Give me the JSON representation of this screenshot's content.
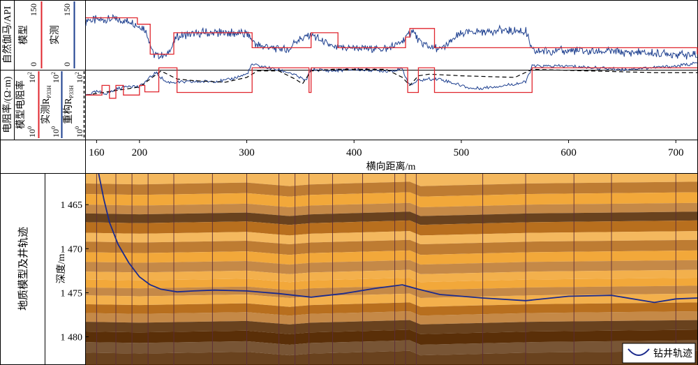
{
  "panels": {
    "gamma": {
      "group_label": "自然伽马/API",
      "model_label": "模型",
      "measured_label": "实测",
      "scale_min": "0",
      "scale_max": "150"
    },
    "resistivity": {
      "group_label": "电阻率/(Ω·m)",
      "model_label": "模型电阻率",
      "measured_label": "实测R",
      "measured_sub": "P33H",
      "recon_label": "重构R",
      "recon_sub": "P33H",
      "scale_min": "10",
      "scale_min_exp": "0",
      "scale_max": "10",
      "scale_max_exp": "2"
    },
    "geology": {
      "group_label": "地质模型及井轨迹",
      "depth_label": "深度/m",
      "legend_label": "钻井轨迹"
    }
  },
  "chart_data": {
    "type": "line",
    "x_axis": {
      "label": "横向距离/m",
      "range": [
        150,
        720
      ],
      "ticks": [
        "160",
        "200",
        "300",
        "400",
        "500",
        "600",
        "700"
      ],
      "tick_values": [
        160,
        200,
        300,
        400,
        500,
        600,
        700
      ]
    },
    "depth_axis": {
      "range": [
        1461.5,
        1483.2
      ],
      "ticks": [
        "1 465",
        "1 470",
        "1 475",
        "1 480"
      ],
      "tick_values": [
        1465,
        1470,
        1475,
        1480
      ]
    },
    "colors": {
      "model": "#e0262e",
      "measured": "#1d3f8f",
      "recon": "#000000",
      "trajectory": "#1b2a8c",
      "layer_dark": "#5a2f08",
      "layer_mid": "#b86f1e",
      "layer_light": "#f2a83a"
    },
    "gamma_model": {
      "x": [
        150,
        193,
        198,
        210,
        225,
        232,
        300,
        305,
        340,
        360,
        385,
        410,
        448,
        452,
        460,
        475,
        565,
        720
      ],
      "y": [
        115,
        115,
        100,
        30,
        30,
        80,
        80,
        45,
        45,
        80,
        45,
        45,
        70,
        90,
        90,
        45,
        45,
        30
      ]
    },
    "gamma_measured": {
      "x": [
        150,
        175,
        193,
        205,
        213,
        225,
        235,
        260,
        300,
        310,
        340,
        345,
        360,
        380,
        400,
        430,
        445,
        455,
        462,
        480,
        500,
        530,
        560,
        566,
        600,
        650,
        700,
        720
      ],
      "y": [
        108,
        112,
        105,
        90,
        30,
        25,
        70,
        80,
        78,
        50,
        40,
        60,
        75,
        45,
        45,
        42,
        60,
        85,
        55,
        40,
        78,
        85,
        85,
        38,
        38,
        35,
        30,
        28
      ]
    },
    "res_model": {
      "x": [
        150,
        160,
        165,
        172,
        178,
        185,
        200,
        205,
        213,
        218,
        232,
        235,
        300,
        305,
        315,
        340,
        358,
        360,
        445,
        450,
        460,
        462,
        475,
        476,
        565,
        566,
        720
      ],
      "y": [
        1.3,
        1.3,
        1.6,
        1.2,
        1.6,
        1.3,
        1.6,
        1.4,
        1.4,
        2.15,
        2.15,
        1.38,
        1.38,
        2.15,
        2.15,
        2.15,
        1.38,
        2.15,
        2.15,
        1.38,
        2.15,
        2.15,
        1.38,
        1.38,
        1.38,
        2.15,
        2.15
      ]
    },
    "res_measured": {
      "x": [
        150,
        160,
        170,
        180,
        190,
        200,
        205,
        215,
        225,
        240,
        260,
        280,
        300,
        305,
        320,
        340,
        355,
        360,
        380,
        400,
        430,
        445,
        452,
        460,
        470,
        480,
        495,
        510,
        520,
        540,
        560,
        566,
        600,
        650,
        700,
        720
      ],
      "y": [
        1.3,
        1.4,
        1.35,
        1.5,
        1.6,
        1.55,
        1.7,
        2.0,
        1.7,
        1.7,
        1.72,
        1.75,
        1.95,
        2.25,
        2.15,
        2.0,
        1.75,
        2.1,
        2.05,
        2.1,
        2.05,
        2.1,
        1.6,
        1.75,
        1.8,
        1.8,
        1.65,
        1.5,
        1.52,
        1.6,
        1.7,
        2.2,
        2.2,
        2.1,
        2.2,
        2.3
      ]
    },
    "res_recon": {
      "x": [
        150,
        160,
        170,
        180,
        190,
        200,
        210,
        220,
        235,
        250,
        280,
        300,
        310,
        330,
        345,
        352,
        360,
        380,
        430,
        445,
        452,
        460,
        470,
        500,
        550,
        566,
        620,
        680,
        720
      ],
      "y": [
        1.3,
        1.35,
        1.4,
        1.45,
        1.5,
        1.55,
        1.8,
        2.05,
        1.8,
        1.75,
        1.7,
        1.85,
        2.05,
        2.05,
        1.8,
        1.65,
        2.05,
        2.1,
        2.1,
        1.85,
        1.6,
        1.9,
        1.95,
        1.9,
        1.85,
        2.1,
        2.05,
        2.0,
        2.0
      ]
    },
    "trajectory": {
      "name": "钻井轨迹",
      "x": [
        162,
        167,
        172,
        180,
        190,
        200,
        210,
        220,
        235,
        250,
        270,
        300,
        330,
        360,
        390,
        420,
        445,
        460,
        480,
        520,
        560,
        600,
        640,
        680,
        700,
        720
      ],
      "depth": [
        1461.5,
        1464.5,
        1467.0,
        1469.5,
        1471.6,
        1473.2,
        1474.1,
        1474.6,
        1474.9,
        1474.8,
        1474.7,
        1474.8,
        1475.1,
        1475.5,
        1475.1,
        1474.5,
        1474.1,
        1474.6,
        1475.2,
        1475.6,
        1475.9,
        1475.4,
        1475.3,
        1476.1,
        1475.7,
        1475.6
      ]
    },
    "fault_x": [
      160,
      178,
      193,
      208,
      232,
      268,
      300,
      330,
      345,
      358,
      380,
      408,
      438,
      448,
      458,
      520,
      560,
      605,
      640,
      700
    ],
    "layer_control_x": [
      150,
      200,
      300,
      340,
      360,
      452,
      462,
      565,
      720
    ],
    "layers": [
      {
        "tone": "light",
        "top": [
          1461.5,
          1461.5,
          1461.5,
          1461.5,
          1461.5,
          1461.5,
          1461.5,
          1461.5,
          1461.5
        ]
      },
      {
        "tone": "mid",
        "top": [
          1462.6,
          1462.7,
          1462.5,
          1462.9,
          1462.7,
          1462.4,
          1462.9,
          1462.6,
          1462.4
        ]
      },
      {
        "tone": "light",
        "top": [
          1463.8,
          1463.9,
          1463.7,
          1464.1,
          1463.9,
          1463.6,
          1464.1,
          1463.8,
          1463.6
        ]
      },
      {
        "tone": "mid",
        "top": [
          1465.0,
          1465.1,
          1464.9,
          1465.3,
          1465.1,
          1464.8,
          1465.3,
          1465.0,
          1464.8
        ]
      },
      {
        "tone": "dark",
        "top": [
          1466.0,
          1466.1,
          1465.9,
          1466.3,
          1466.1,
          1465.8,
          1466.3,
          1466.0,
          1465.8
        ]
      },
      {
        "tone": "mid",
        "top": [
          1467.0,
          1467.1,
          1466.9,
          1467.3,
          1467.1,
          1466.8,
          1467.3,
          1467.0,
          1466.8
        ]
      },
      {
        "tone": "light",
        "top": [
          1468.2,
          1468.3,
          1468.1,
          1468.5,
          1468.3,
          1468.0,
          1468.5,
          1468.2,
          1468.0
        ]
      },
      {
        "tone": "mid",
        "top": [
          1469.2,
          1469.3,
          1469.1,
          1469.5,
          1469.3,
          1469.0,
          1469.5,
          1469.2,
          1469.0
        ]
      },
      {
        "tone": "light",
        "top": [
          1470.4,
          1470.5,
          1470.3,
          1470.7,
          1470.5,
          1470.2,
          1470.7,
          1470.4,
          1470.2
        ]
      },
      {
        "tone": "mid",
        "top": [
          1471.5,
          1471.6,
          1471.4,
          1471.8,
          1471.6,
          1471.3,
          1471.8,
          1471.5,
          1471.3
        ]
      },
      {
        "tone": "light",
        "top": [
          1472.6,
          1472.7,
          1472.5,
          1472.9,
          1472.7,
          1472.4,
          1472.9,
          1472.6,
          1472.4
        ]
      },
      {
        "tone": "light",
        "top": [
          1473.5,
          1473.6,
          1473.4,
          1473.8,
          1473.6,
          1473.3,
          1473.8,
          1473.5,
          1473.3
        ]
      },
      {
        "tone": "mid",
        "top": [
          1474.4,
          1474.5,
          1474.3,
          1474.7,
          1474.5,
          1474.2,
          1474.7,
          1474.4,
          1474.2
        ]
      },
      {
        "tone": "light",
        "top": [
          1475.3,
          1475.4,
          1475.2,
          1475.6,
          1475.4,
          1475.1,
          1475.6,
          1475.3,
          1475.1
        ]
      },
      {
        "tone": "mid",
        "top": [
          1476.3,
          1476.4,
          1476.2,
          1476.6,
          1476.4,
          1476.1,
          1476.6,
          1476.3,
          1476.1
        ]
      },
      {
        "tone": "mid",
        "top": [
          1477.3,
          1477.4,
          1477.2,
          1477.6,
          1477.4,
          1477.1,
          1477.6,
          1477.3,
          1477.1
        ]
      },
      {
        "tone": "dark",
        "top": [
          1478.3,
          1478.4,
          1478.2,
          1478.6,
          1478.4,
          1478.1,
          1478.6,
          1478.3,
          1478.1
        ]
      },
      {
        "tone": "dark",
        "top": [
          1479.4,
          1479.5,
          1479.3,
          1479.7,
          1479.5,
          1479.2,
          1479.7,
          1479.4,
          1479.2
        ]
      },
      {
        "tone": "dark",
        "top": [
          1480.6,
          1480.7,
          1480.5,
          1480.9,
          1480.7,
          1480.4,
          1480.9,
          1480.6,
          1480.4
        ]
      },
      {
        "tone": "dark",
        "top": [
          1481.8,
          1481.9,
          1481.7,
          1482.1,
          1481.9,
          1481.6,
          1482.1,
          1481.8,
          1481.6
        ]
      }
    ]
  }
}
